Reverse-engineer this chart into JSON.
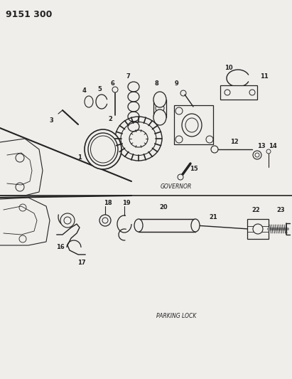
{
  "title": "9151 300",
  "governor_label": "GOVERNOR",
  "parking_label": "PARKING LOCK",
  "bg_color": "#f0eeeb",
  "line_color": "#222222",
  "figsize": [
    4.11,
    5.33
  ],
  "dpi": 100
}
